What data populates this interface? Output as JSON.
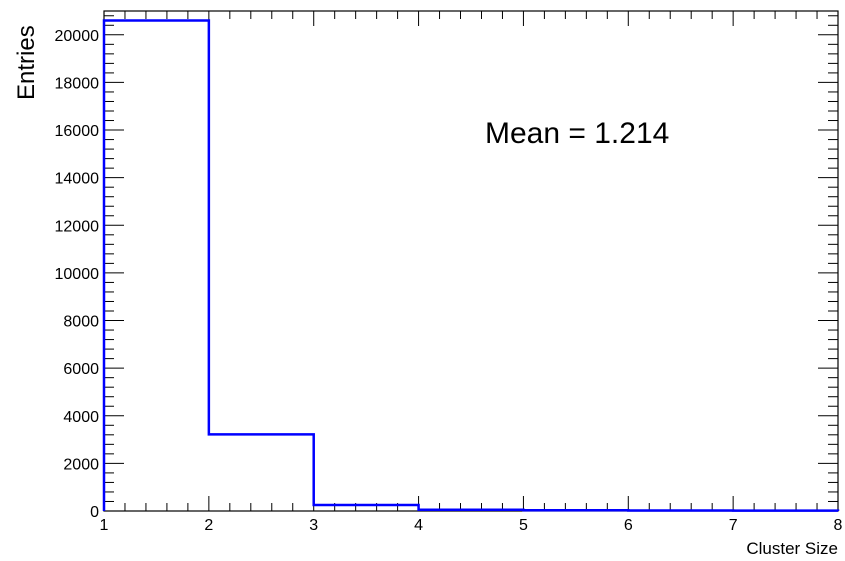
{
  "chart_data": {
    "type": "histogram",
    "title": "",
    "xlabel": "Cluster Size",
    "ylabel": "Entries",
    "xlim": [
      1,
      8
    ],
    "ylim": [
      0,
      21000
    ],
    "bin_edges": [
      1,
      2,
      3,
      4,
      5,
      6,
      7,
      8
    ],
    "values": [
      20600,
      3220,
      250,
      55,
      30,
      20,
      15
    ],
    "x_ticks": [
      "1",
      "2",
      "3",
      "4",
      "5",
      "6",
      "7",
      "8"
    ],
    "y_ticks": [
      "0",
      "2000",
      "4000",
      "6000",
      "8000",
      "10000",
      "12000",
      "14000",
      "16000",
      "18000",
      "20000"
    ],
    "line_color": "#0000ff",
    "annotation": "Mean = 1.214",
    "grid": false,
    "legend": "none"
  }
}
